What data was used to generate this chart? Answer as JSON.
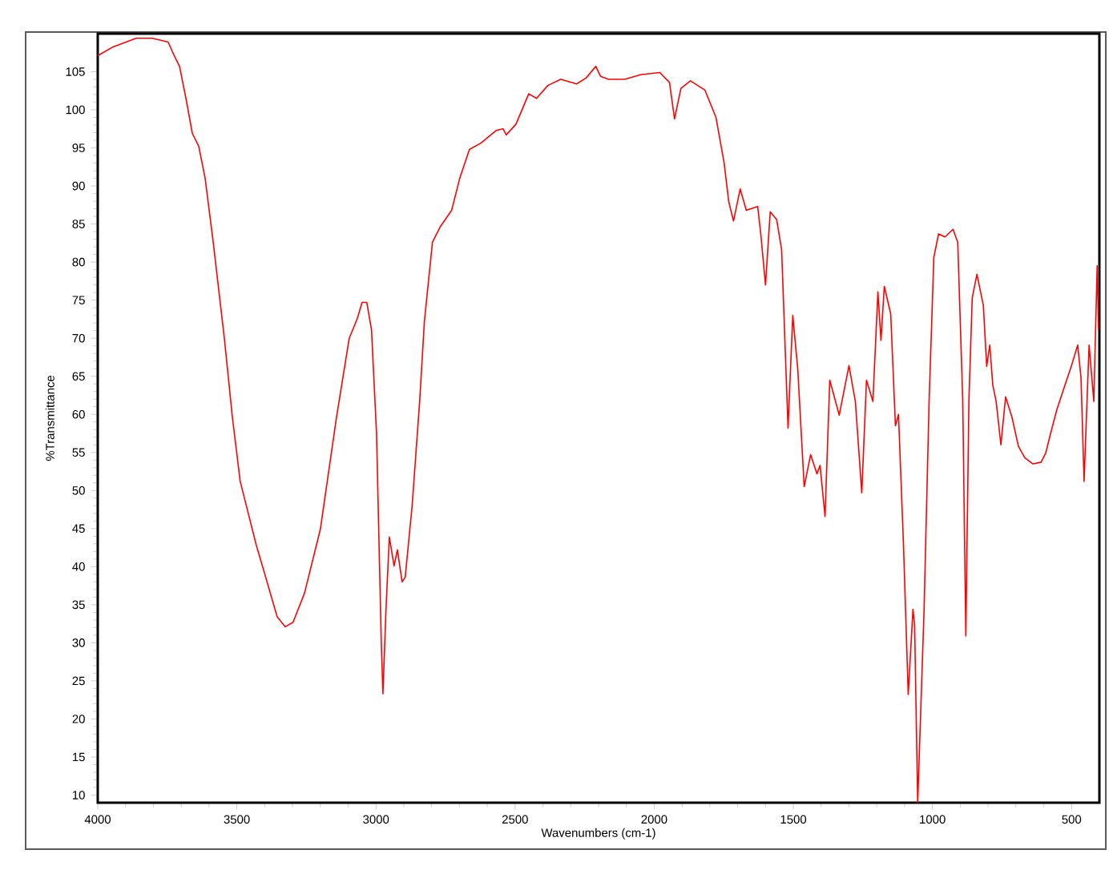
{
  "chart_data": {
    "type": "line",
    "xlabel": "Wavenumbers (cm-1)",
    "ylabel": "%Transmittance",
    "xlim": [
      4000,
      400
    ],
    "ylim": [
      9,
      110
    ],
    "xticks": [
      4000,
      3500,
      3000,
      2500,
      2000,
      1500,
      1000,
      500
    ],
    "yticks": [
      10,
      15,
      20,
      25,
      30,
      35,
      40,
      45,
      50,
      55,
      60,
      65,
      70,
      75,
      80,
      85,
      90,
      95,
      100,
      105
    ],
    "grid": false,
    "marker": "none",
    "line_style": "solid",
    "series": [
      {
        "color": "#ff0000",
        "x": [
          4000,
          3948,
          3862,
          3804,
          3747,
          3729,
          3706,
          3683,
          3660,
          3637,
          3614,
          3585,
          3545,
          3516,
          3488,
          3430,
          3401,
          3355,
          3326,
          3298,
          3257,
          3200,
          3142,
          3096,
          3067,
          3050,
          3033,
          3016,
          2998,
          2981,
          2975,
          2964,
          2952,
          2935,
          2923,
          2906,
          2895,
          2870,
          2843,
          2826,
          2797,
          2768,
          2728,
          2699,
          2664,
          2624,
          2567,
          2543,
          2532,
          2497,
          2451,
          2423,
          2382,
          2336,
          2279,
          2244,
          2210,
          2193,
          2164,
          2106,
          2049,
          1980,
          1945,
          1927,
          1904,
          1870,
          1818,
          1778,
          1749,
          1732,
          1715,
          1691,
          1669,
          1628,
          1617,
          1600,
          1583,
          1560,
          1542,
          1519,
          1502,
          1484,
          1461,
          1438,
          1415,
          1404,
          1386,
          1369,
          1335,
          1300,
          1277,
          1254,
          1237,
          1214,
          1196,
          1185,
          1173,
          1150,
          1133,
          1122,
          1104,
          1087,
          1070,
          1064,
          1053,
          1030,
          1012,
          995,
          978,
          955,
          926,
          909,
          891,
          880,
          869,
          857,
          840,
          817,
          805,
          794,
          783,
          771,
          754,
          737,
          714,
          691,
          668,
          639,
          610,
          593,
          576,
          553,
          524,
          501,
          478,
          466,
          455,
          437,
          420,
          408,
          403
        ],
        "values": [
          107.1,
          108.2,
          109.4,
          109.4,
          108.9,
          107.4,
          105.7,
          101.5,
          96.9,
          95.2,
          91,
          82.6,
          70,
          59.6,
          51.2,
          42.8,
          39.2,
          33.4,
          32.1,
          32.7,
          36.5,
          44.9,
          59.6,
          70,
          72.6,
          74.7,
          74.7,
          71.1,
          57.5,
          30.2,
          23.3,
          34.4,
          43.9,
          40.1,
          42.2,
          38,
          38.6,
          48,
          61.7,
          72.2,
          82.6,
          84.7,
          86.8,
          91,
          94.8,
          95.6,
          97.3,
          97.5,
          96.7,
          98.1,
          102.1,
          101.5,
          103.2,
          104,
          103.4,
          104.2,
          105.7,
          104.4,
          104,
          104,
          104.6,
          104.9,
          103.6,
          98.8,
          102.8,
          103.8,
          102.6,
          99,
          93.1,
          87.9,
          85.4,
          89.6,
          86.8,
          87.3,
          83.7,
          77,
          86.6,
          85.6,
          81.6,
          58.2,
          73,
          65.9,
          50.5,
          54.7,
          52.2,
          53.3,
          46.6,
          64.5,
          59.9,
          66.4,
          61.7,
          49.7,
          64.5,
          61.7,
          76.1,
          69.7,
          76.8,
          73.2,
          58.5,
          60,
          42.8,
          23.2,
          34.4,
          32.3,
          9,
          34.4,
          61.7,
          80.6,
          83.7,
          83.3,
          84.3,
          82.6,
          61.7,
          30.9,
          61.7,
          75.3,
          78.4,
          74.3,
          66.3,
          69.1,
          63.8,
          61.7,
          56,
          62.3,
          59.6,
          55.8,
          54.3,
          53.5,
          53.7,
          54.9,
          57.4,
          60.6,
          63.8,
          66.3,
          69.1,
          64.8,
          51.2,
          69.1,
          61.7,
          79.5,
          71.1
        ]
      }
    ]
  }
}
